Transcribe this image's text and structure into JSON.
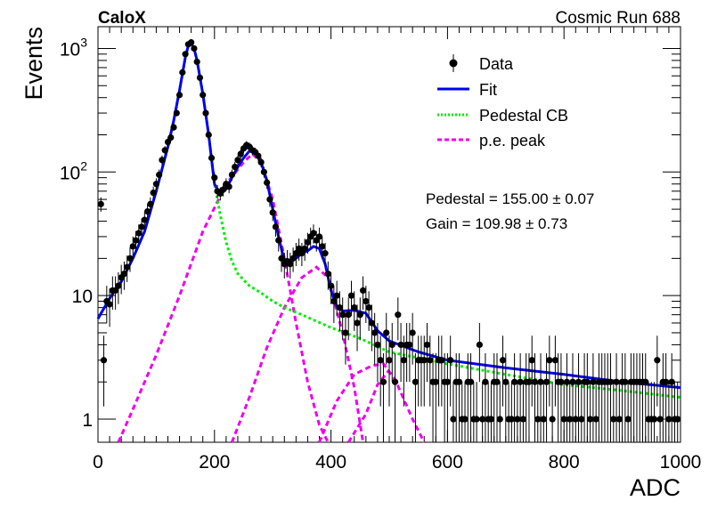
{
  "header": {
    "experiment": "CaloX",
    "run": "Cosmic Run 688"
  },
  "fit_results": {
    "pedestal": "Pedestal = 155.00 ± 0.07",
    "gain": "Gain = 109.98 ± 0.73"
  },
  "chart_data": {
    "type": "scatter",
    "xlabel": "ADC",
    "ylabel": "Events",
    "xlim": [
      0,
      1000
    ],
    "ylim": [
      0.65,
      1500
    ],
    "yscale": "log",
    "grid": false,
    "legend_position": "top-right",
    "x_ticks": [
      "0",
      "200",
      "400",
      "600",
      "800",
      "1000"
    ],
    "y_ticks": [
      {
        "value": 1,
        "base": "1",
        "exp": ""
      },
      {
        "value": 10,
        "base": "10",
        "exp": ""
      },
      {
        "value": 100,
        "base": "10",
        "exp": "2"
      },
      {
        "value": 1000,
        "base": "10",
        "exp": "3"
      }
    ],
    "legend": [
      {
        "label": "Data",
        "style": "marker",
        "color": "#000000"
      },
      {
        "label": "Fit",
        "style": "solid",
        "color": "#0000ee"
      },
      {
        "label": "Pedestal CB",
        "style": "dotted",
        "color": "#00ee00"
      },
      {
        "label": "p.e. peak",
        "style": "dashed",
        "color": "#ee00ee"
      }
    ],
    "data": [
      [
        5,
        55
      ],
      [
        10,
        3
      ],
      [
        15,
        9
      ],
      [
        20,
        8.5
      ],
      [
        25,
        11
      ],
      [
        30,
        11
      ],
      [
        35,
        12
      ],
      [
        40,
        14
      ],
      [
        45,
        15
      ],
      [
        50,
        17
      ],
      [
        55,
        20
      ],
      [
        60,
        25
      ],
      [
        65,
        28
      ],
      [
        70,
        32
      ],
      [
        75,
        36
      ],
      [
        80,
        41
      ],
      [
        85,
        48
      ],
      [
        90,
        55
      ],
      [
        95,
        68
      ],
      [
        100,
        80
      ],
      [
        105,
        95
      ],
      [
        110,
        125
      ],
      [
        115,
        150
      ],
      [
        120,
        175
      ],
      [
        125,
        190
      ],
      [
        130,
        230
      ],
      [
        135,
        300
      ],
      [
        140,
        420
      ],
      [
        145,
        640
      ],
      [
        150,
        900
      ],
      [
        155,
        1080
      ],
      [
        160,
        1120
      ],
      [
        165,
        1000
      ],
      [
        170,
        780
      ],
      [
        175,
        580
      ],
      [
        180,
        420
      ],
      [
        185,
        300
      ],
      [
        190,
        200
      ],
      [
        195,
        130
      ],
      [
        200,
        90
      ],
      [
        205,
        70
      ],
      [
        210,
        67
      ],
      [
        215,
        72
      ],
      [
        220,
        80
      ],
      [
        225,
        76
      ],
      [
        230,
        95
      ],
      [
        235,
        110
      ],
      [
        240,
        125
      ],
      [
        245,
        140
      ],
      [
        250,
        155
      ],
      [
        255,
        165
      ],
      [
        260,
        160
      ],
      [
        265,
        150
      ],
      [
        270,
        145
      ],
      [
        275,
        135
      ],
      [
        280,
        120
      ],
      [
        285,
        100
      ],
      [
        290,
        82
      ],
      [
        295,
        60
      ],
      [
        300,
        47
      ],
      [
        305,
        36
      ],
      [
        310,
        28
      ],
      [
        315,
        20
      ],
      [
        320,
        18
      ],
      [
        325,
        19
      ],
      [
        330,
        18
      ],
      [
        335,
        20
      ],
      [
        340,
        22
      ],
      [
        345,
        24
      ],
      [
        350,
        22
      ],
      [
        355,
        24
      ],
      [
        360,
        27
      ],
      [
        365,
        30
      ],
      [
        370,
        32
      ],
      [
        375,
        28
      ],
      [
        380,
        30
      ],
      [
        385,
        25
      ],
      [
        390,
        22
      ],
      [
        395,
        15
      ],
      [
        400,
        12
      ],
      [
        405,
        9
      ],
      [
        410,
        10
      ],
      [
        415,
        8
      ],
      [
        420,
        7
      ],
      [
        425,
        5
      ],
      [
        430,
        7
      ],
      [
        435,
        10
      ],
      [
        440,
        8
      ],
      [
        445,
        6
      ],
      [
        450,
        7
      ],
      [
        455,
        11
      ],
      [
        460,
        9
      ],
      [
        465,
        8
      ],
      [
        470,
        6
      ],
      [
        475,
        5
      ],
      [
        480,
        4
      ],
      [
        485,
        3
      ],
      [
        490,
        2
      ],
      [
        495,
        5
      ],
      [
        500,
        3
      ],
      [
        505,
        4
      ],
      [
        510,
        2
      ],
      [
        515,
        7
      ],
      [
        520,
        4
      ],
      [
        525,
        3
      ],
      [
        530,
        4
      ],
      [
        535,
        4
      ],
      [
        540,
        5
      ],
      [
        545,
        2
      ],
      [
        550,
        3
      ],
      [
        555,
        3
      ],
      [
        560,
        3
      ],
      [
        565,
        4
      ],
      [
        570,
        3
      ],
      [
        575,
        2
      ],
      [
        580,
        2
      ],
      [
        585,
        3
      ],
      [
        590,
        3
      ],
      [
        595,
        2
      ],
      [
        600,
        2
      ],
      [
        605,
        3
      ],
      [
        610,
        1
      ],
      [
        615,
        2
      ],
      [
        620,
        2
      ],
      [
        625,
        1
      ],
      [
        630,
        1
      ],
      [
        635,
        2
      ],
      [
        640,
        2
      ],
      [
        645,
        1
      ],
      [
        650,
        1
      ],
      [
        655,
        4
      ],
      [
        660,
        1
      ],
      [
        665,
        2
      ],
      [
        670,
        1
      ],
      [
        675,
        1
      ],
      [
        680,
        2
      ],
      [
        685,
        2
      ],
      [
        690,
        1
      ],
      [
        695,
        3
      ],
      [
        700,
        2
      ],
      [
        705,
        1
      ],
      [
        710,
        1
      ],
      [
        715,
        2
      ],
      [
        720,
        1
      ],
      [
        725,
        2
      ],
      [
        730,
        1
      ],
      [
        735,
        2
      ],
      [
        740,
        2
      ],
      [
        745,
        3
      ],
      [
        750,
        2
      ],
      [
        755,
        1
      ],
      [
        760,
        2
      ],
      [
        765,
        1
      ],
      [
        770,
        2
      ],
      [
        775,
        3
      ],
      [
        780,
        1
      ],
      [
        785,
        3
      ],
      [
        790,
        2
      ],
      [
        795,
        2
      ],
      [
        800,
        1
      ],
      [
        805,
        2
      ],
      [
        810,
        1
      ],
      [
        815,
        2
      ],
      [
        820,
        1
      ],
      [
        825,
        2
      ],
      [
        830,
        1
      ],
      [
        835,
        2
      ],
      [
        840,
        2
      ],
      [
        845,
        1
      ],
      [
        850,
        2
      ],
      [
        855,
        1
      ],
      [
        860,
        2
      ],
      [
        865,
        2
      ],
      [
        870,
        2
      ],
      [
        875,
        2
      ],
      [
        880,
        2
      ],
      [
        885,
        1
      ],
      [
        890,
        2
      ],
      [
        895,
        1
      ],
      [
        900,
        2
      ],
      [
        905,
        2
      ],
      [
        910,
        1
      ],
      [
        915,
        2
      ],
      [
        920,
        2
      ],
      [
        925,
        2
      ],
      [
        930,
        2
      ],
      [
        935,
        2
      ],
      [
        940,
        2
      ],
      [
        945,
        1
      ],
      [
        950,
        1
      ],
      [
        955,
        1
      ],
      [
        960,
        3
      ],
      [
        965,
        1
      ],
      [
        970,
        2
      ],
      [
        975,
        2
      ],
      [
        980,
        1
      ],
      [
        985,
        2
      ],
      [
        990,
        1
      ],
      [
        995,
        1
      ]
    ],
    "fit": [
      [
        0,
        6.5
      ],
      [
        20,
        9.5
      ],
      [
        40,
        13
      ],
      [
        60,
        20
      ],
      [
        80,
        33
      ],
      [
        100,
        70
      ],
      [
        120,
        160
      ],
      [
        130,
        260
      ],
      [
        140,
        460
      ],
      [
        150,
        850
      ],
      [
        155,
        1050
      ],
      [
        160,
        1100
      ],
      [
        165,
        1000
      ],
      [
        170,
        800
      ],
      [
        180,
        430
      ],
      [
        190,
        200
      ],
      [
        200,
        80
      ],
      [
        210,
        66
      ],
      [
        220,
        73
      ],
      [
        230,
        90
      ],
      [
        240,
        110
      ],
      [
        250,
        130
      ],
      [
        260,
        148
      ],
      [
        265,
        152
      ],
      [
        270,
        145
      ],
      [
        280,
        120
      ],
      [
        290,
        85
      ],
      [
        300,
        50
      ],
      [
        310,
        30
      ],
      [
        320,
        19
      ],
      [
        330,
        19
      ],
      [
        340,
        20
      ],
      [
        350,
        22
      ],
      [
        360,
        23
      ],
      [
        370,
        25
      ],
      [
        380,
        24
      ],
      [
        390,
        18
      ],
      [
        400,
        11
      ],
      [
        410,
        8.2
      ],
      [
        420,
        7.5
      ],
      [
        440,
        7.6
      ],
      [
        460,
        7.2
      ],
      [
        480,
        5.2
      ],
      [
        500,
        4.3
      ],
      [
        550,
        3.5
      ],
      [
        600,
        3.0
      ],
      [
        700,
        2.6
      ],
      [
        800,
        2.3
      ],
      [
        900,
        2.0
      ],
      [
        1000,
        1.8
      ]
    ],
    "pedestal_cb": [
      [
        0,
        6.5
      ],
      [
        20,
        9.5
      ],
      [
        40,
        13
      ],
      [
        60,
        20
      ],
      [
        80,
        33
      ],
      [
        100,
        70
      ],
      [
        120,
        160
      ],
      [
        130,
        260
      ],
      [
        140,
        460
      ],
      [
        150,
        850
      ],
      [
        155,
        1050
      ],
      [
        160,
        1100
      ],
      [
        165,
        1000
      ],
      [
        170,
        800
      ],
      [
        180,
        430
      ],
      [
        190,
        200
      ],
      [
        200,
        80
      ],
      [
        210,
        45
      ],
      [
        220,
        27
      ],
      [
        230,
        19
      ],
      [
        240,
        15
      ],
      [
        260,
        12
      ],
      [
        280,
        10.5
      ],
      [
        300,
        9
      ],
      [
        320,
        8
      ],
      [
        350,
        7
      ],
      [
        400,
        5.5
      ],
      [
        450,
        4.5
      ],
      [
        500,
        3.5
      ],
      [
        600,
        2.8
      ],
      [
        700,
        2.3
      ],
      [
        800,
        1.9
      ],
      [
        900,
        1.7
      ],
      [
        1000,
        1.5
      ]
    ],
    "pe_peaks": [
      {
        "n": 1,
        "points": [
          [
            35,
            0.65
          ],
          [
            60,
            1.2
          ],
          [
            100,
            3.3
          ],
          [
            140,
            10
          ],
          [
            180,
            33
          ],
          [
            220,
            80
          ],
          [
            250,
            120
          ],
          [
            265,
            140
          ],
          [
            280,
            120
          ],
          [
            300,
            60
          ],
          [
            320,
            20
          ],
          [
            340,
            6
          ],
          [
            360,
            2
          ],
          [
            380,
            0.9
          ],
          [
            395,
            0.65
          ]
        ]
      },
      {
        "n": 2,
        "points": [
          [
            230,
            0.65
          ],
          [
            260,
            1.5
          ],
          [
            290,
            3.8
          ],
          [
            320,
            8
          ],
          [
            350,
            14
          ],
          [
            375,
            17
          ],
          [
            395,
            14
          ],
          [
            420,
            5
          ],
          [
            440,
            1.8
          ],
          [
            455,
            0.65
          ]
        ]
      },
      {
        "n": 3,
        "points": [
          [
            380,
            0.65
          ],
          [
            410,
            1.4
          ],
          [
            440,
            2.3
          ],
          [
            470,
            2.7
          ],
          [
            490,
            2.8
          ],
          [
            510,
            2.1
          ],
          [
            540,
            1.0
          ],
          [
            560,
            0.65
          ]
        ]
      },
      {
        "n": 3,
        "points": [
          [
            430,
            0.65
          ],
          [
            460,
            1.1
          ],
          [
            480,
            1.9
          ],
          [
            500,
            2.5
          ]
        ]
      }
    ]
  }
}
